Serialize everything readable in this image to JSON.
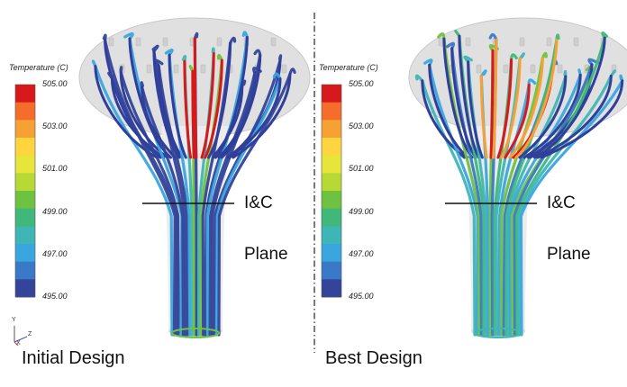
{
  "legend": {
    "title": "Temperature (C)",
    "ticks": [
      "505.00",
      "503.00",
      "501.00",
      "499.00",
      "497.00",
      "495.00"
    ],
    "colors": [
      "#d7191c",
      "#f46d2b",
      "#f7a134",
      "#fed43f",
      "#e8e53a",
      "#b6d935",
      "#6fc23f",
      "#3fb87a",
      "#3fb6b6",
      "#39a6e0",
      "#3a78c8",
      "#33449a"
    ]
  },
  "axis_triad": {
    "up": "Y",
    "right": "Z",
    "origin": "X"
  },
  "panels": [
    {
      "plane_label_1": "I&C",
      "plane_label_2": "Plane",
      "design_label": "Initial Design"
    },
    {
      "plane_label_1": "I&C",
      "plane_label_2": "Plane",
      "design_label": "Best Design"
    }
  ]
}
